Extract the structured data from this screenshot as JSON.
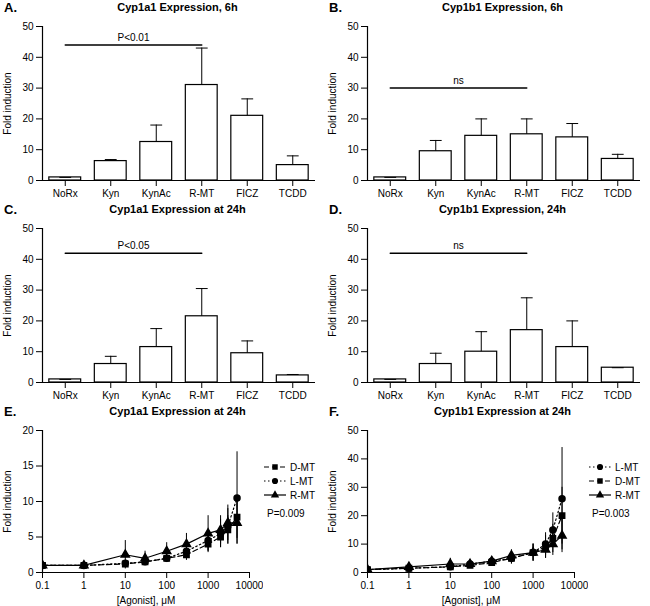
{
  "chart_data": [
    {
      "panel": "A.",
      "type": "bar",
      "title": "Cyp1a1 Expression, 6h",
      "y_label": "Fold induction",
      "categories": [
        "NoRx",
        "Kyn",
        "KynAc",
        "R-MT",
        "FICZ",
        "TCDD"
      ],
      "values": [
        1,
        6.3,
        12.5,
        31,
        21,
        5
      ],
      "errors": [
        0,
        0.5,
        5.5,
        12,
        5.5,
        3
      ],
      "color": "#ffffff",
      "ylim": [
        0,
        50
      ],
      "yticks": [
        0,
        10,
        20,
        30,
        40,
        50
      ],
      "annotations": [
        {
          "text": "P<0.01",
          "from": "NoRx",
          "to": "R-MT",
          "y": 44
        }
      ]
    },
    {
      "panel": "B.",
      "type": "bar",
      "title": "Cyp1b1 Expression, 6h",
      "y_label": "Fold induction",
      "categories": [
        "NoRx",
        "Kyn",
        "KynAc",
        "R-MT",
        "FICZ",
        "TCDD"
      ],
      "values": [
        1,
        9.5,
        14.5,
        15,
        14,
        7
      ],
      "errors": [
        0,
        3.5,
        5.5,
        5,
        4.5,
        1.5
      ],
      "color": "#ffffff",
      "ylim": [
        0,
        50
      ],
      "yticks": [
        0,
        10,
        20,
        30,
        40,
        50
      ],
      "annotations": [
        {
          "text": "ns",
          "from": "NoRx",
          "to": "R-MT",
          "y": 30
        }
      ]
    },
    {
      "panel": "C.",
      "type": "bar",
      "title": "Cyp1a1 Expression at 24h",
      "y_label": "Fold induction",
      "categories": [
        "NoRx",
        "Kyn",
        "KynAc",
        "R-MT",
        "FICZ",
        "TCDD"
      ],
      "values": [
        1,
        6,
        11.5,
        21.5,
        9.5,
        2.3
      ],
      "errors": [
        0,
        2.5,
        6,
        9,
        4,
        0.3
      ],
      "color": "#ffffff",
      "ylim": [
        0,
        50
      ],
      "yticks": [
        0,
        10,
        20,
        30,
        40,
        50
      ],
      "annotations": [
        {
          "text": "P<0.05",
          "from": "NoRx",
          "to": "R-MT",
          "y": 42
        }
      ]
    },
    {
      "panel": "D.",
      "type": "bar",
      "title": "Cyp1b1 Expression, 24h",
      "y_label": "Fold induction",
      "categories": [
        "NoRx",
        "Kyn",
        "KynAc",
        "R-MT",
        "FICZ",
        "TCDD"
      ],
      "values": [
        1,
        6,
        10,
        17,
        11.5,
        4.8
      ],
      "errors": [
        0,
        3.5,
        6.5,
        10.5,
        8.5,
        0
      ],
      "color": "#ffffff",
      "ylim": [
        0,
        50
      ],
      "yticks": [
        0,
        10,
        20,
        30,
        40,
        50
      ],
      "annotations": [
        {
          "text": "ns",
          "from": "NoRx",
          "to": "R-MT",
          "y": 42
        }
      ]
    },
    {
      "panel": "E.",
      "type": "line",
      "title": "Cyp1a1 Expression at 24h",
      "x_label": "[Agonist], μM",
      "y_label": "Fold induction",
      "log": "x",
      "x": [
        0.1,
        1,
        10,
        30,
        100,
        300,
        1000,
        2000,
        3000,
        5000
      ],
      "xlim": [
        0.1,
        10000
      ],
      "xticks": [
        0.1,
        1,
        10,
        100,
        1000,
        10000
      ],
      "ylim": [
        0,
        20
      ],
      "yticks": [
        0,
        5,
        10,
        15,
        20
      ],
      "legend": "right",
      "annotations": [
        {
          "text": "P=0.009"
        }
      ],
      "series": [
        {
          "name": "D-MT",
          "color": "#000000",
          "marker": "square",
          "line_style": "dashed",
          "values": [
            1,
            1,
            1.2,
            1.5,
            2,
            2.5,
            4,
            5,
            6,
            7.8
          ],
          "errors": [
            0.2,
            0.2,
            0.3,
            0.4,
            0.5,
            0.8,
            1.2,
            1.5,
            2,
            3
          ]
        },
        {
          "name": "L-MT",
          "color": "#000000",
          "marker": "circle",
          "line_style": "dotted",
          "values": [
            1,
            1,
            1.3,
            1.5,
            2,
            3,
            4.5,
            5.5,
            6.5,
            10.5
          ],
          "errors": [
            0.2,
            0.2,
            0.3,
            0.5,
            0.6,
            1,
            1.5,
            2,
            2.5,
            6.5
          ]
        },
        {
          "name": "R-MT",
          "color": "#000000",
          "marker": "triangle",
          "line_style": "solid",
          "values": [
            1,
            1,
            2.5,
            2,
            3,
            4,
            5.5,
            6,
            7,
            7
          ],
          "errors": [
            0.3,
            0.3,
            2,
            1,
            1.2,
            1.5,
            2.5,
            2,
            2.5,
            3
          ]
        }
      ]
    },
    {
      "panel": "F.",
      "type": "line",
      "title": "Cyp1b1 Expression at 24h",
      "x_label": "[Agonist], μM",
      "y_label": "Fold induction",
      "log": "x",
      "x": [
        0.1,
        1,
        10,
        30,
        100,
        300,
        1000,
        2000,
        3000,
        5000
      ],
      "xlim": [
        0.1,
        10000
      ],
      "xticks": [
        0.1,
        1,
        10,
        100,
        1000,
        10000
      ],
      "ylim": [
        0,
        50
      ],
      "yticks": [
        0,
        10,
        20,
        30,
        40,
        50
      ],
      "legend": "right",
      "annotations": [
        {
          "text": "P=0.003"
        }
      ],
      "series": [
        {
          "name": "L-MT",
          "color": "#000000",
          "marker": "circle",
          "line_style": "dotted",
          "values": [
            1,
            1.5,
            2,
            3,
            4,
            5,
            7,
            10,
            15,
            26
          ],
          "errors": [
            0.3,
            0.5,
            0.8,
            1,
            1.5,
            2,
            3,
            4,
            6,
            18
          ]
        },
        {
          "name": "D-MT",
          "color": "#000000",
          "marker": "square",
          "line_style": "dashed",
          "values": [
            1,
            1.5,
            2,
            2.5,
            3.5,
            5,
            7,
            9,
            12,
            20
          ],
          "errors": [
            0.3,
            0.5,
            0.8,
            1,
            1.2,
            2,
            3,
            4,
            5,
            10
          ]
        },
        {
          "name": "R-MT",
          "color": "#000000",
          "marker": "triangle",
          "line_style": "solid",
          "values": [
            1,
            2,
            3,
            3,
            4,
            6,
            7,
            8,
            10,
            13
          ],
          "errors": [
            0.3,
            1,
            2,
            1.5,
            1.5,
            2,
            3,
            3,
            4,
            6
          ]
        }
      ]
    }
  ]
}
